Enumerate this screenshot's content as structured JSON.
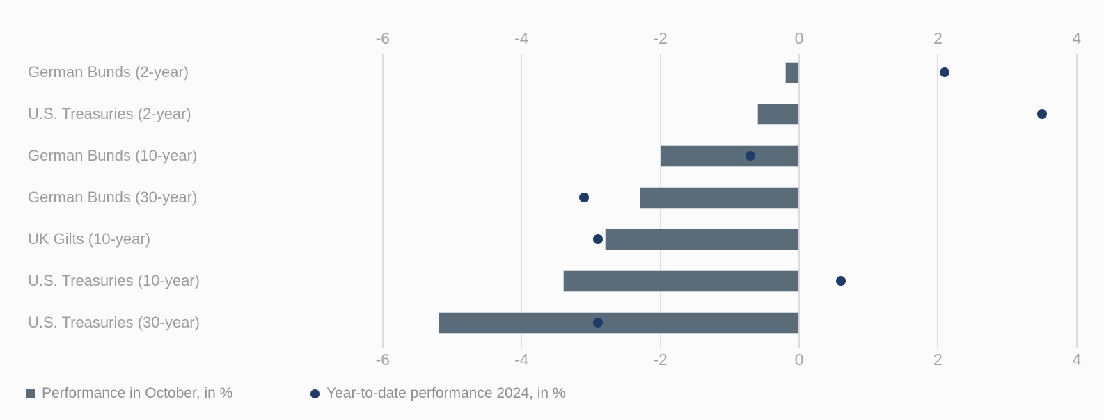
{
  "chart_data": {
    "type": "bar",
    "orientation": "horizontal",
    "title": "",
    "categories": [
      "German Bunds (2-year)",
      "U.S. Treasuries (2-year)",
      "German Bunds (10-year)",
      "German Bunds (30-year)",
      "UK Gilts (10-year)",
      "U.S. Treasuries (10-year)",
      "U.S. Treasuries (30-year)"
    ],
    "series": [
      {
        "name": "Performance in October, in %",
        "type": "bar",
        "marker": "square",
        "color": "#5a6c7a",
        "values": [
          -0.2,
          -0.6,
          -2.0,
          -2.3,
          -2.8,
          -3.4,
          -5.2
        ]
      },
      {
        "name": "Year-to-date performance 2024, in %",
        "type": "scatter",
        "marker": "circle",
        "color": "#1f3b67",
        "values": [
          2.1,
          3.5,
          -0.7,
          -3.1,
          -2.9,
          0.6,
          -2.9
        ]
      }
    ],
    "xlim": [
      -6.8,
      4.4
    ],
    "x_ticks": [
      -6,
      -4,
      -2,
      0,
      2,
      4
    ],
    "x_tick_labels": [
      "-6",
      "-4",
      "-2",
      "0",
      "2",
      "4"
    ],
    "grid": "vertical-gridlines",
    "axis_label_positions": [
      "top",
      "bottom"
    ],
    "legend_position": "bottom-left"
  },
  "legend": {
    "items": [
      {
        "label": "Performance in October, in %",
        "marker": "square",
        "color": "#5a6c7a"
      },
      {
        "label": "Year-to-date performance 2024, in %",
        "marker": "circle",
        "color": "#1f3b67"
      }
    ]
  },
  "colors": {
    "background": "#fbfbfb",
    "bar": "#5a6c7a",
    "bar_border": "#ccd2d6",
    "dot": "#1f3b67",
    "gridline": "#dcdcdc",
    "category_label": "#9c9c9c",
    "tick_label": "#a3a3a3",
    "legend_label": "#8f8f8f"
  }
}
